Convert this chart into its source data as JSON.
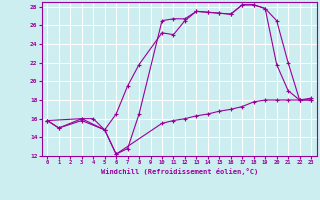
{
  "background_color": "#cceef0",
  "grid_color": "#ffffff",
  "line_color": "#990099",
  "xlabel": "Windchill (Refroidissement éolien,°C)",
  "xlim": [
    -0.5,
    23.5
  ],
  "ylim": [
    12,
    28.5
  ],
  "yticks": [
    12,
    14,
    16,
    18,
    20,
    22,
    24,
    26,
    28
  ],
  "xticks": [
    0,
    1,
    2,
    3,
    4,
    5,
    6,
    7,
    8,
    9,
    10,
    11,
    12,
    13,
    14,
    15,
    16,
    17,
    18,
    19,
    20,
    21,
    22,
    23
  ],
  "line1_x": [
    0,
    1,
    3,
    4,
    5,
    6,
    7,
    8,
    10,
    11,
    12,
    13,
    14,
    15,
    16,
    17,
    18,
    19,
    20,
    21,
    22,
    23
  ],
  "line1_y": [
    15.8,
    15.0,
    16.0,
    16.0,
    14.8,
    12.2,
    12.8,
    16.5,
    26.5,
    26.7,
    26.7,
    27.5,
    27.4,
    27.3,
    27.2,
    28.2,
    28.2,
    27.8,
    21.8,
    19.0,
    18.0,
    18.0
  ],
  "line2_x": [
    0,
    3,
    5,
    6,
    7,
    8,
    10,
    11,
    12,
    13,
    14,
    15,
    16,
    17,
    18,
    19,
    20,
    21,
    22,
    23
  ],
  "line2_y": [
    15.8,
    16.0,
    14.8,
    16.5,
    19.5,
    21.8,
    25.2,
    25.0,
    26.5,
    27.5,
    27.4,
    27.3,
    27.2,
    28.2,
    28.2,
    27.8,
    26.5,
    22.0,
    18.0,
    18.0
  ],
  "line3_x": [
    0,
    1,
    3,
    5,
    6,
    10,
    11,
    12,
    13,
    14,
    15,
    16,
    17,
    18,
    19,
    20,
    21,
    22,
    23
  ],
  "line3_y": [
    15.8,
    15.0,
    15.8,
    14.8,
    12.2,
    15.5,
    15.8,
    16.0,
    16.3,
    16.5,
    16.8,
    17.0,
    17.3,
    17.8,
    18.0,
    18.0,
    18.0,
    18.0,
    18.2
  ]
}
